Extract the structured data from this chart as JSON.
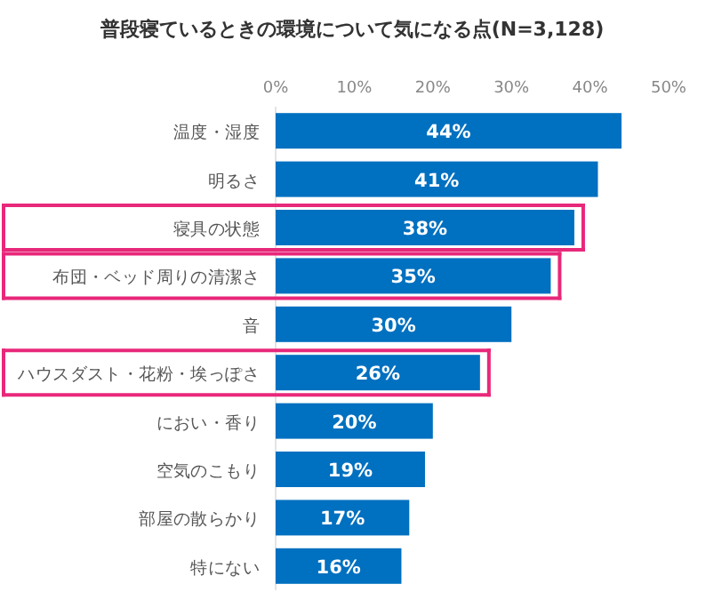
{
  "chart_data": {
    "type": "bar",
    "orientation": "horizontal",
    "title": "普段寝ているときの環境について気になる点(N=3,128)",
    "categories": [
      "温度・湿度",
      "明るさ",
      "寝具の状態",
      "布団・ベッド周りの清潔さ",
      "音",
      "ハウスダスト・花粉・埃っぽさ",
      "におい・香り",
      "空気のこもり",
      "部屋の散らかり",
      "特にない"
    ],
    "values": [
      44,
      41,
      38,
      35,
      30,
      26,
      20,
      19,
      17,
      16
    ],
    "value_labels": [
      "44%",
      "41%",
      "38%",
      "35%",
      "30%",
      "26%",
      "20%",
      "19%",
      "17%",
      "16%"
    ],
    "color": "#0070c0",
    "xlim": [
      0,
      50
    ],
    "xticks": [
      {
        "value": 0,
        "label": "0%"
      },
      {
        "value": 10,
        "label": "10%"
      },
      {
        "value": 20,
        "label": "20%"
      },
      {
        "value": 30,
        "label": "30%"
      },
      {
        "value": 40,
        "label": "40%"
      },
      {
        "value": 50,
        "label": "50%"
      }
    ],
    "grid": false
  }
}
